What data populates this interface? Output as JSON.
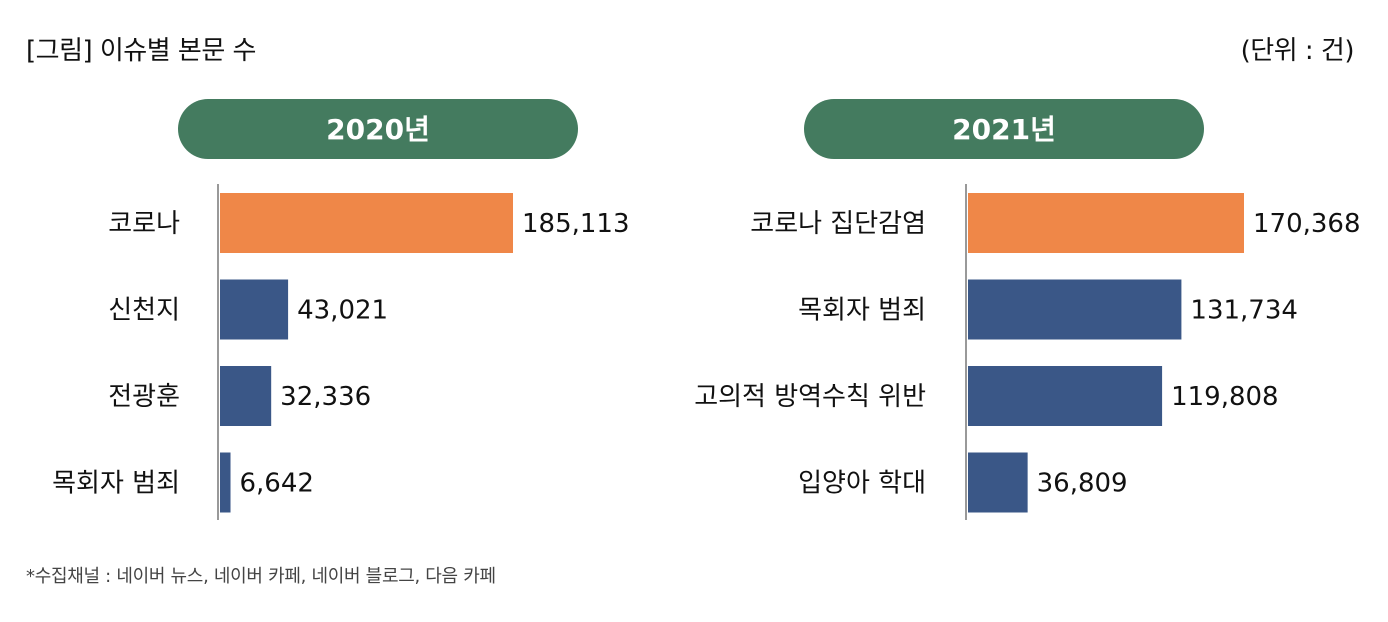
{
  "header": {
    "title": "[그림] 이슈별 본문 수",
    "unit": "(단위 : 건)"
  },
  "footnote": "*수집채널 : 네이버 뉴스, 네이버 카페, 네이버 블로그, 다음 카페",
  "colors": {
    "highlight": "#EF8748",
    "default": "#3A5787",
    "pill": "#447B5F",
    "axis": "#999999"
  },
  "chart_data": [
    {
      "type": "bar",
      "orientation": "horizontal",
      "title": "2020년",
      "categories": [
        "코로나",
        "신천지",
        "전광훈",
        "목회자 범죄"
      ],
      "values": [
        185113,
        43021,
        32336,
        6642
      ],
      "value_labels": [
        "185,113",
        "43,021",
        "32,336",
        "6,642"
      ],
      "highlight_index": 0
    },
    {
      "type": "bar",
      "orientation": "horizontal",
      "title": "2021년",
      "categories": [
        "코로나 집단감염",
        "목회자 범죄",
        "고의적 방역수칙 위반",
        "입양아 학대"
      ],
      "values": [
        170368,
        131734,
        119808,
        36809
      ],
      "value_labels": [
        "170,368",
        "131,734",
        "119,808",
        "36,809"
      ],
      "highlight_index": 0
    }
  ]
}
